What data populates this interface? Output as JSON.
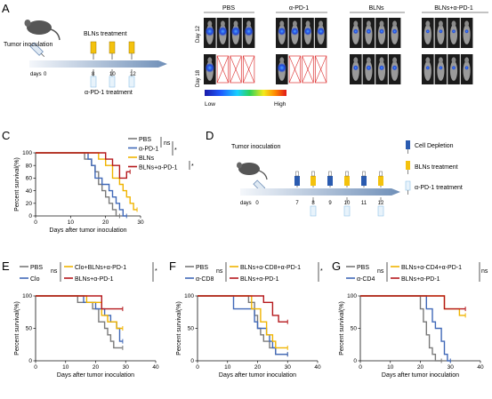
{
  "panels": {
    "A": {
      "letter": "A",
      "inoculation": "Tumor inoculation",
      "treatment_top": "BLNs treatment",
      "treatment_bottom": "α-PD-1 treatment",
      "days_label": "days",
      "days": [
        "0",
        "8",
        "10",
        "12"
      ],
      "image_groups": [
        "PBS",
        "α-PD-1",
        "BLNs",
        "BLNs+α-PD-1"
      ],
      "rows": [
        "Day 12",
        "Day 18"
      ],
      "colorbar_low": "Low",
      "colorbar_high": "High"
    },
    "D": {
      "letter": "D",
      "inoculation": "Tumor inoculation",
      "days_label": "days",
      "days": [
        "0",
        "7",
        "8",
        "9",
        "10",
        "11",
        "12"
      ],
      "legend": [
        "Cell Depletion",
        "BLNs treatment",
        "α-PD-1 treatment"
      ]
    }
  },
  "colors": {
    "gray": "#7a7a7a",
    "blue": "#4169b8",
    "yellow": "#f0b400",
    "red": "#b5181c",
    "syringe_yellow": "#f4c20d",
    "syringe_blue": "#2a5bb0",
    "syringe_light": "#8fc3e8"
  },
  "chart_data": [
    {
      "type": "line",
      "panel": "C",
      "xlabel": "Days after tumor inoculation",
      "ylabel": "Percent survival(%)",
      "xlim": [
        0,
        30
      ],
      "ylim": [
        0,
        100
      ],
      "xticks": [
        0,
        10,
        20,
        30
      ],
      "yticks": [
        0,
        20,
        40,
        60,
        80,
        100
      ],
      "legend": [
        {
          "name": "PBS",
          "color": "#7a7a7a"
        },
        {
          "name": "α-PD-1",
          "color": "#4169b8"
        },
        {
          "name": "BLNs",
          "color": "#f0b400"
        },
        {
          "name": "BLNs+α-PD-1",
          "color": "#b5181c"
        }
      ],
      "annotations": [
        "ns",
        "*",
        "*"
      ],
      "series": [
        {
          "name": "PBS",
          "color": "#7a7a7a",
          "points": [
            [
              0,
              100
            ],
            [
              14,
              100
            ],
            [
              14,
              90
            ],
            [
              16,
              90
            ],
            [
              16,
              80
            ],
            [
              17,
              80
            ],
            [
              17,
              70
            ],
            [
              18,
              70
            ],
            [
              18,
              50
            ],
            [
              19,
              50
            ],
            [
              19,
              40
            ],
            [
              20,
              40
            ],
            [
              20,
              30
            ],
            [
              21,
              30
            ],
            [
              21,
              20
            ],
            [
              22,
              20
            ],
            [
              22,
              10
            ],
            [
              23,
              10
            ],
            [
              23,
              0
            ],
            [
              24,
              0
            ]
          ]
        },
        {
          "name": "α-PD-1",
          "color": "#4169b8",
          "points": [
            [
              0,
              100
            ],
            [
              15,
              100
            ],
            [
              15,
              90
            ],
            [
              16,
              90
            ],
            [
              16,
              80
            ],
            [
              17,
              80
            ],
            [
              17,
              60
            ],
            [
              19,
              60
            ],
            [
              19,
              50
            ],
            [
              21,
              50
            ],
            [
              21,
              40
            ],
            [
              22,
              40
            ],
            [
              22,
              30
            ],
            [
              23,
              30
            ],
            [
              23,
              20
            ],
            [
              24,
              20
            ],
            [
              24,
              10
            ],
            [
              25,
              10
            ],
            [
              25,
              0
            ],
            [
              26,
              0
            ]
          ]
        },
        {
          "name": "BLNs",
          "color": "#f0b400",
          "points": [
            [
              0,
              100
            ],
            [
              18,
              100
            ],
            [
              18,
              90
            ],
            [
              20,
              90
            ],
            [
              20,
              80
            ],
            [
              22,
              80
            ],
            [
              22,
              60
            ],
            [
              24,
              60
            ],
            [
              24,
              50
            ],
            [
              25,
              50
            ],
            [
              25,
              40
            ],
            [
              26,
              40
            ],
            [
              26,
              30
            ],
            [
              27,
              30
            ],
            [
              27,
              20
            ],
            [
              28,
              20
            ],
            [
              28,
              10
            ],
            [
              29,
              10
            ]
          ]
        },
        {
          "name": "BLNs+α-PD-1",
          "color": "#b5181c",
          "points": [
            [
              0,
              100
            ],
            [
              20,
              100
            ],
            [
              20,
              90
            ],
            [
              22,
              90
            ],
            [
              22,
              80
            ],
            [
              24,
              80
            ],
            [
              24,
              60
            ],
            [
              26,
              60
            ],
            [
              26,
              70
            ],
            [
              27,
              70
            ]
          ]
        }
      ]
    },
    {
      "type": "line",
      "panel": "E",
      "xlabel": "Days after tumor inoculation",
      "ylabel": "Percent survival(%)",
      "xlim": [
        0,
        40
      ],
      "ylim": [
        0,
        100
      ],
      "xticks": [
        0,
        10,
        20,
        30,
        40
      ],
      "yticks": [
        0,
        50,
        100
      ],
      "legend": [
        {
          "name": "PBS",
          "color": "#7a7a7a"
        },
        {
          "name": "Clo",
          "color": "#4169b8"
        },
        {
          "name": "Clo+BLNs+α-PD-1",
          "color": "#f0b400"
        },
        {
          "name": "BLNs+α-PD-1",
          "color": "#b5181c"
        }
      ],
      "annotations": [
        "ns",
        "ns",
        "*"
      ],
      "series": [
        {
          "name": "PBS",
          "color": "#7a7a7a",
          "points": [
            [
              0,
              100
            ],
            [
              14,
              100
            ],
            [
              14,
              90
            ],
            [
              19,
              90
            ],
            [
              19,
              80
            ],
            [
              21,
              80
            ],
            [
              21,
              60
            ],
            [
              23,
              60
            ],
            [
              23,
              50
            ],
            [
              24,
              50
            ],
            [
              24,
              40
            ],
            [
              25,
              40
            ],
            [
              25,
              30
            ],
            [
              26,
              30
            ],
            [
              26,
              20
            ],
            [
              29,
              20
            ]
          ]
        },
        {
          "name": "Clo",
          "color": "#4169b8",
          "points": [
            [
              0,
              100
            ],
            [
              16,
              100
            ],
            [
              16,
              90
            ],
            [
              20,
              90
            ],
            [
              20,
              80
            ],
            [
              23,
              80
            ],
            [
              23,
              70
            ],
            [
              25,
              70
            ],
            [
              25,
              60
            ],
            [
              27,
              60
            ],
            [
              27,
              50
            ],
            [
              28,
              50
            ],
            [
              28,
              30
            ],
            [
              29,
              30
            ]
          ]
        },
        {
          "name": "Clo+BLNs+α-PD-1",
          "color": "#f0b400",
          "points": [
            [
              0,
              100
            ],
            [
              17,
              100
            ],
            [
              17,
              90
            ],
            [
              22,
              90
            ],
            [
              22,
              70
            ],
            [
              24,
              70
            ],
            [
              24,
              60
            ],
            [
              27,
              60
            ],
            [
              27,
              50
            ],
            [
              29,
              50
            ]
          ]
        },
        {
          "name": "BLNs+α-PD-1",
          "color": "#b5181c",
          "points": [
            [
              0,
              100
            ],
            [
              22,
              100
            ],
            [
              22,
              80
            ],
            [
              29,
              80
            ]
          ]
        }
      ]
    },
    {
      "type": "line",
      "panel": "F",
      "xlabel": "Days after tumor inoculation",
      "ylabel": "Percent survival(%)",
      "xlim": [
        0,
        40
      ],
      "ylim": [
        0,
        100
      ],
      "xticks": [
        0,
        10,
        20,
        30,
        40
      ],
      "yticks": [
        0,
        50,
        100
      ],
      "legend": [
        {
          "name": "PBS",
          "color": "#7a7a7a"
        },
        {
          "name": "α-CD8",
          "color": "#4169b8"
        },
        {
          "name": "BLNs+α-CD8+α-PD-1",
          "color": "#f0b400"
        },
        {
          "name": "BLNs+α-PD-1",
          "color": "#b5181c"
        }
      ],
      "annotations": [
        "ns",
        "ns",
        "*"
      ],
      "series": [
        {
          "name": "PBS",
          "color": "#7a7a7a",
          "points": [
            [
              0,
              100
            ],
            [
              17,
              100
            ],
            [
              17,
              90
            ],
            [
              19,
              90
            ],
            [
              19,
              70
            ],
            [
              20,
              70
            ],
            [
              20,
              50
            ],
            [
              21,
              50
            ],
            [
              21,
              40
            ],
            [
              22,
              40
            ],
            [
              22,
              30
            ],
            [
              24,
              30
            ],
            [
              24,
              20
            ],
            [
              26,
              20
            ],
            [
              26,
              10
            ],
            [
              30,
              10
            ]
          ]
        },
        {
          "name": "α-CD8",
          "color": "#4169b8",
          "points": [
            [
              0,
              100
            ],
            [
              12,
              100
            ],
            [
              12,
              80
            ],
            [
              19,
              80
            ],
            [
              19,
              60
            ],
            [
              20,
              60
            ],
            [
              20,
              50
            ],
            [
              23,
              50
            ],
            [
              23,
              40
            ],
            [
              24,
              40
            ],
            [
              24,
              30
            ],
            [
              25,
              30
            ],
            [
              25,
              20
            ],
            [
              26,
              20
            ],
            [
              26,
              10
            ],
            [
              30,
              10
            ]
          ]
        },
        {
          "name": "BLNs+α-CD8+α-PD-1",
          "color": "#f0b400",
          "points": [
            [
              0,
              100
            ],
            [
              18,
              100
            ],
            [
              18,
              80
            ],
            [
              21,
              80
            ],
            [
              21,
              60
            ],
            [
              23,
              60
            ],
            [
              23,
              40
            ],
            [
              25,
              40
            ],
            [
              25,
              30
            ],
            [
              26,
              30
            ],
            [
              26,
              20
            ],
            [
              30,
              20
            ]
          ]
        },
        {
          "name": "BLNs+α-PD-1",
          "color": "#b5181c",
          "points": [
            [
              0,
              100
            ],
            [
              22,
              100
            ],
            [
              22,
              90
            ],
            [
              25,
              90
            ],
            [
              25,
              70
            ],
            [
              27,
              70
            ],
            [
              27,
              60
            ],
            [
              30,
              60
            ]
          ]
        }
      ]
    },
    {
      "type": "line",
      "panel": "G",
      "xlabel": "Days after tumor inoculation",
      "ylabel": "Percent survival(%)",
      "xlim": [
        0,
        40
      ],
      "ylim": [
        0,
        100
      ],
      "xticks": [
        0,
        10,
        20,
        30,
        40
      ],
      "yticks": [
        0,
        50,
        100
      ],
      "legend": [
        {
          "name": "PBS",
          "color": "#7a7a7a"
        },
        {
          "name": "α-CD4",
          "color": "#4169b8"
        },
        {
          "name": "BLNs+α-CD4+α-PD-1",
          "color": "#f0b400"
        },
        {
          "name": "BLNs+α-PD-1",
          "color": "#b5181c"
        }
      ],
      "annotations": [
        "ns",
        "ns"
      ],
      "series": [
        {
          "name": "PBS",
          "color": "#7a7a7a",
          "points": [
            [
              0,
              100
            ],
            [
              20,
              100
            ],
            [
              20,
              80
            ],
            [
              21,
              80
            ],
            [
              21,
              60
            ],
            [
              22,
              60
            ],
            [
              22,
              40
            ],
            [
              23,
              40
            ],
            [
              23,
              20
            ],
            [
              24,
              20
            ],
            [
              24,
              10
            ],
            [
              25,
              10
            ],
            [
              25,
              0
            ],
            [
              27,
              0
            ]
          ]
        },
        {
          "name": "α-CD4",
          "color": "#4169b8",
          "points": [
            [
              0,
              100
            ],
            [
              22,
              100
            ],
            [
              22,
              80
            ],
            [
              24,
              80
            ],
            [
              24,
              60
            ],
            [
              25,
              60
            ],
            [
              25,
              50
            ],
            [
              27,
              50
            ],
            [
              27,
              30
            ],
            [
              28,
              30
            ],
            [
              28,
              10
            ],
            [
              29,
              10
            ],
            [
              29,
              0
            ],
            [
              30,
              0
            ]
          ]
        },
        {
          "name": "BLNs+α-CD4+α-PD-1",
          "color": "#f0b400",
          "points": [
            [
              0,
              100
            ],
            [
              28,
              100
            ],
            [
              28,
              80
            ],
            [
              33,
              80
            ],
            [
              33,
              70
            ],
            [
              35,
              70
            ]
          ]
        },
        {
          "name": "BLNs+α-PD-1",
          "color": "#b5181c",
          "points": [
            [
              0,
              100
            ],
            [
              28,
              100
            ],
            [
              28,
              80
            ],
            [
              35,
              80
            ]
          ]
        }
      ]
    }
  ]
}
